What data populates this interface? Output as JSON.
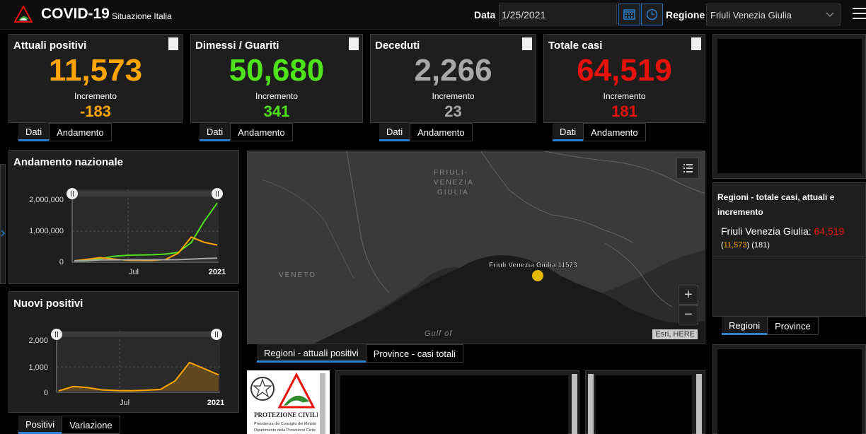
{
  "header": {
    "title": "COVID-19",
    "subtitle": "Situazione Italia",
    "date_label": "Data",
    "date_value": "1/25/2021",
    "region_label": "Regione",
    "region_value": "Friuli Venezia Giulia"
  },
  "cards": [
    {
      "title": "Attuali positivi",
      "value": "11,573",
      "inc_label": "Incremento",
      "inc": "-183",
      "color": "#ffa500"
    },
    {
      "title": "Dimessi / Guariti",
      "value": "50,680",
      "inc_label": "Incremento",
      "inc": "341",
      "color": "#4ee31b"
    },
    {
      "title": "Deceduti",
      "value": "2,266",
      "inc_label": "Incremento",
      "inc": "23",
      "color": "#a8a8a8"
    },
    {
      "title": "Totale casi",
      "value": "64,519",
      "inc_label": "Incremento",
      "inc": "181",
      "color": "#e8120c"
    }
  ],
  "card_tabs": {
    "dati": "Dati",
    "andamento": "Andamento"
  },
  "trend_panel": {
    "title": "Andamento nazionale",
    "y_ticks": [
      "2,000,000",
      "1,000,000",
      "0"
    ],
    "x_ticks": [
      "Jul",
      "2021"
    ]
  },
  "new_panel": {
    "title": "Nuovi positivi",
    "y_ticks": [
      "2,000",
      "1,000",
      "0"
    ],
    "x_ticks": [
      "Jul",
      "2021"
    ]
  },
  "chart_tabs": {
    "positivi": "Positivi",
    "variazione": "Variazione"
  },
  "chart_data": [
    {
      "type": "line",
      "title": "Andamento nazionale",
      "x": [
        "2020-02",
        "2020-03",
        "2020-04",
        "2020-05",
        "2020-06",
        "2020-07",
        "2020-08",
        "2020-09",
        "2020-10",
        "2020-11",
        "2020-12",
        "2021-01"
      ],
      "ylim": [
        0,
        2000000
      ],
      "series": [
        {
          "color": "#4ee31b",
          "values": [
            0,
            3000,
            70000,
            150000,
            180000,
            190000,
            200000,
            220000,
            280000,
            600000,
            1300000,
            1900000
          ]
        },
        {
          "color": "#ffa500",
          "values": [
            0,
            50000,
            105000,
            60000,
            20000,
            13000,
            15000,
            40000,
            250000,
            780000,
            610000,
            520000
          ]
        },
        {
          "color": "#a8a8a8",
          "values": [
            0,
            10000,
            27000,
            33000,
            34500,
            35000,
            35300,
            35800,
            38000,
            55000,
            74000,
            85000
          ]
        }
      ]
    },
    {
      "type": "area",
      "title": "Nuovi positivi",
      "x": [
        "2020-02",
        "2020-03",
        "2020-04",
        "2020-05",
        "2020-06",
        "2020-07",
        "2020-08",
        "2020-09",
        "2020-10",
        "2020-11",
        "2020-12",
        "2021-01"
      ],
      "ylim": [
        0,
        2000
      ],
      "series": [
        {
          "color": "#ffa500",
          "values": [
            0,
            180,
            130,
            40,
            15,
            10,
            25,
            60,
            400,
            1150,
            900,
            650
          ]
        }
      ]
    }
  ],
  "map": {
    "label_region_top": [
      "FRIULI-",
      "VENEZIA",
      "GIULIA"
    ],
    "label_veneto": "VENETO",
    "label_gulf": "Gulf of",
    "point_label": "Friuli Venezia Giulia 11573",
    "attribution": "Esri, HERE",
    "zoom_in": "+",
    "zoom_out": "−"
  },
  "map_tabs": {
    "regioni": "Regioni - attuali positivi",
    "province": "Province - casi totali"
  },
  "side": {
    "title": "Regioni - totale casi, attuali e incremento",
    "region": "Friuli Venezia Giulia:",
    "total": "64,519",
    "current": "11,573",
    "increment": "(181)"
  },
  "side_tabs": {
    "regioni": "Regioni",
    "province": "Province"
  },
  "logo": {
    "line1": "PROTEZIONE CIVILE",
    "line2": "Presidenza del Consiglio dei Ministri",
    "line3": "Dipartimento della Protezione Civile"
  }
}
